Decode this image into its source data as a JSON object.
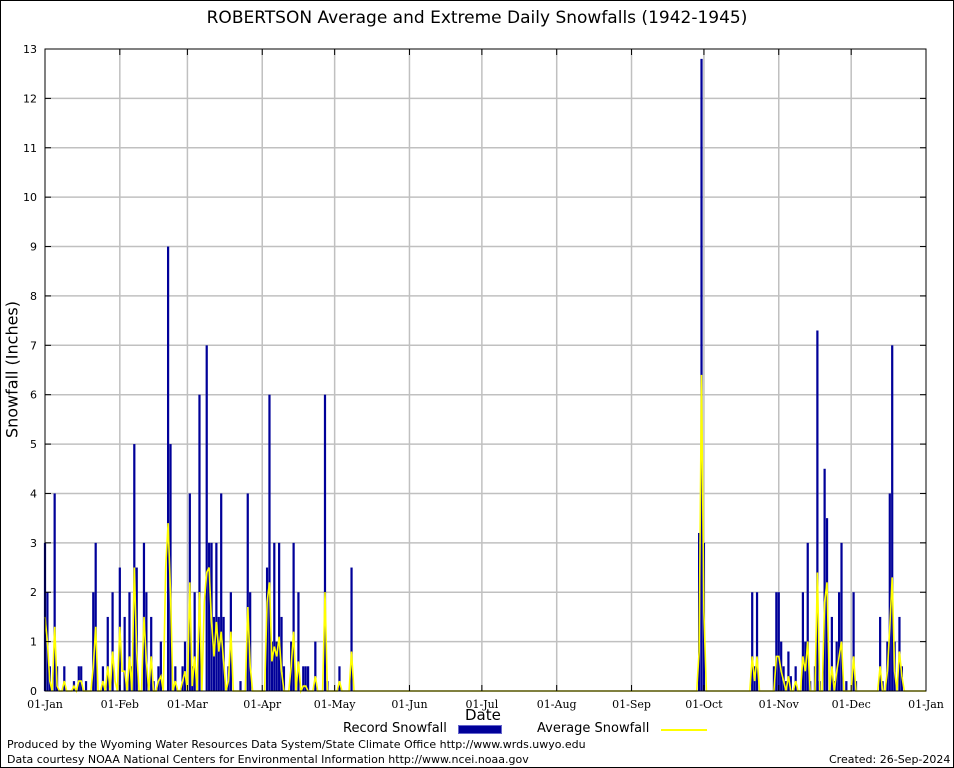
{
  "chart_data": {
    "type": "bar",
    "title": "ROBERTSON Average and Extreme Daily Snowfalls (1942-1945)",
    "xlabel": "Date",
    "ylabel": "Snowfall (Inches)",
    "ylim": [
      0,
      13
    ],
    "yticks": [
      0,
      1,
      2,
      3,
      4,
      5,
      6,
      7,
      8,
      9,
      10,
      11,
      12,
      13
    ],
    "xlim_days": [
      1,
      366
    ],
    "xticks": [
      {
        "label": "01-Jan",
        "day": 1
      },
      {
        "label": "01-Feb",
        "day": 32
      },
      {
        "label": "01-Mar",
        "day": 60
      },
      {
        "label": "01-Apr",
        "day": 91
      },
      {
        "label": "01-May",
        "day": 121
      },
      {
        "label": "01-Jun",
        "day": 152
      },
      {
        "label": "01-Jul",
        "day": 182
      },
      {
        "label": "01-Aug",
        "day": 213
      },
      {
        "label": "01-Sep",
        "day": 244
      },
      {
        "label": "01-Oct",
        "day": 274
      },
      {
        "label": "01-Nov",
        "day": 305
      },
      {
        "label": "01-Dec",
        "day": 335
      },
      {
        "label": "01-Jan",
        "day": 366
      }
    ],
    "grid": true,
    "legend_position": "bottom",
    "series": [
      {
        "name": "Record Snowfall",
        "color": "#000099",
        "points": [
          [
            1,
            3
          ],
          [
            2,
            2
          ],
          [
            3,
            0.5
          ],
          [
            5,
            4
          ],
          [
            6,
            0.5
          ],
          [
            9,
            0.5
          ],
          [
            13,
            0.2
          ],
          [
            15,
            0.5
          ],
          [
            16,
            0.5
          ],
          [
            18,
            0.2
          ],
          [
            21,
            2
          ],
          [
            22,
            3
          ],
          [
            25,
            0.5
          ],
          [
            27,
            1.5
          ],
          [
            29,
            2
          ],
          [
            32,
            2.5
          ],
          [
            34,
            1.5
          ],
          [
            36,
            2
          ],
          [
            37,
            0.5
          ],
          [
            38,
            5
          ],
          [
            39,
            2.5
          ],
          [
            42,
            3
          ],
          [
            43,
            2
          ],
          [
            45,
            1.5
          ],
          [
            46,
            0.2
          ],
          [
            48,
            0.5
          ],
          [
            49,
            1
          ],
          [
            52,
            9
          ],
          [
            53,
            5
          ],
          [
            55,
            0.5
          ],
          [
            58,
            0.5
          ],
          [
            59,
            1
          ],
          [
            61,
            4
          ],
          [
            62,
            0.5
          ],
          [
            63,
            2
          ],
          [
            65,
            6
          ],
          [
            68,
            7
          ],
          [
            69,
            3
          ],
          [
            70,
            3
          ],
          [
            71,
            1.5
          ],
          [
            72,
            3
          ],
          [
            73,
            1.5
          ],
          [
            74,
            4
          ],
          [
            75,
            1.5
          ],
          [
            77,
            0.5
          ],
          [
            78,
            2
          ],
          [
            82,
            0.2
          ],
          [
            85,
            4
          ],
          [
            86,
            2
          ],
          [
            93,
            2.5
          ],
          [
            94,
            6
          ],
          [
            95,
            1
          ],
          [
            96,
            3
          ],
          [
            97,
            1
          ],
          [
            98,
            3
          ],
          [
            99,
            1.5
          ],
          [
            100,
            0.5
          ],
          [
            103,
            1
          ],
          [
            104,
            3
          ],
          [
            106,
            2
          ],
          [
            108,
            0.5
          ],
          [
            109,
            0.5
          ],
          [
            110,
            0.5
          ],
          [
            113,
            1
          ],
          [
            117,
            6
          ],
          [
            118,
            0.2
          ],
          [
            123,
            0.5
          ],
          [
            128,
            2.5
          ],
          [
            272,
            3.2
          ],
          [
            273,
            12.8
          ],
          [
            274,
            3
          ],
          [
            294,
            2
          ],
          [
            295,
            0.5
          ],
          [
            296,
            2
          ],
          [
            303,
            0.5
          ],
          [
            304,
            2
          ],
          [
            305,
            2
          ],
          [
            306,
            1
          ],
          [
            307,
            0.5
          ],
          [
            308,
            0.2
          ],
          [
            309,
            0.8
          ],
          [
            310,
            0.3
          ],
          [
            312,
            0.5
          ],
          [
            315,
            2
          ],
          [
            316,
            1
          ],
          [
            317,
            3
          ],
          [
            318,
            0.2
          ],
          [
            320,
            0.5
          ],
          [
            321,
            7.3
          ],
          [
            322,
            0.2
          ],
          [
            324,
            4.5
          ],
          [
            325,
            3.5
          ],
          [
            327,
            1.5
          ],
          [
            328,
            0.2
          ],
          [
            329,
            1
          ],
          [
            330,
            2
          ],
          [
            331,
            3
          ],
          [
            333,
            0.2
          ],
          [
            336,
            2
          ],
          [
            337,
            0.2
          ],
          [
            347,
            1.5
          ],
          [
            348,
            0.2
          ],
          [
            350,
            1
          ],
          [
            351,
            4
          ],
          [
            352,
            7
          ],
          [
            353,
            1
          ],
          [
            355,
            1.5
          ],
          [
            356,
            0.5
          ]
        ]
      },
      {
        "name": "Average Snowfall",
        "color": "#ffff00",
        "points": [
          [
            1,
            1.5
          ],
          [
            2,
            1
          ],
          [
            3,
            0.2
          ],
          [
            5,
            1.3
          ],
          [
            6,
            0.1
          ],
          [
            9,
            0.2
          ],
          [
            13,
            0.1
          ],
          [
            15,
            0.2
          ],
          [
            16,
            0.2
          ],
          [
            21,
            0.5
          ],
          [
            22,
            1.3
          ],
          [
            25,
            0.2
          ],
          [
            27,
            0.5
          ],
          [
            29,
            0.8
          ],
          [
            30,
            0.2
          ],
          [
            32,
            1.3
          ],
          [
            33,
            0.4
          ],
          [
            34,
            0.4
          ],
          [
            36,
            0.7
          ],
          [
            38,
            2.5
          ],
          [
            39,
            0.8
          ],
          [
            42,
            1.5
          ],
          [
            43,
            0.6
          ],
          [
            45,
            0.7
          ],
          [
            48,
            0.2
          ],
          [
            49,
            0.3
          ],
          [
            51,
            2.5
          ],
          [
            52,
            3.4
          ],
          [
            53,
            2
          ],
          [
            55,
            0.2
          ],
          [
            58,
            0.2
          ],
          [
            59,
            0.4
          ],
          [
            61,
            2.2
          ],
          [
            62,
            0.1
          ],
          [
            63,
            0.7
          ],
          [
            65,
            2
          ],
          [
            67,
            1.8
          ],
          [
            68,
            2.4
          ],
          [
            69,
            2.5
          ],
          [
            70,
            1.4
          ],
          [
            71,
            0.7
          ],
          [
            72,
            1.4
          ],
          [
            73,
            0.8
          ],
          [
            74,
            1.2
          ],
          [
            75,
            0.6
          ],
          [
            77,
            0.2
          ],
          [
            78,
            1.2
          ],
          [
            85,
            1.7
          ],
          [
            86,
            0.5
          ],
          [
            93,
            1.8
          ],
          [
            94,
            2.2
          ],
          [
            95,
            0.6
          ],
          [
            96,
            0.9
          ],
          [
            97,
            0.7
          ],
          [
            98,
            1.1
          ],
          [
            99,
            0.4
          ],
          [
            103,
            0.5
          ],
          [
            104,
            1.2
          ],
          [
            106,
            0.6
          ],
          [
            108,
            0.1
          ],
          [
            109,
            0.1
          ],
          [
            113,
            0.3
          ],
          [
            117,
            2
          ],
          [
            123,
            0.2
          ],
          [
            128,
            0.8
          ],
          [
            272,
            0.8
          ],
          [
            273,
            6.4
          ],
          [
            274,
            1.6
          ],
          [
            294,
            0.7
          ],
          [
            295,
            0.2
          ],
          [
            296,
            0.7
          ],
          [
            304,
            0.7
          ],
          [
            305,
            0.7
          ],
          [
            306,
            0.4
          ],
          [
            307,
            0.2
          ],
          [
            309,
            0.3
          ],
          [
            312,
            0.2
          ],
          [
            315,
            0.7
          ],
          [
            316,
            0.4
          ],
          [
            317,
            1
          ],
          [
            321,
            2.4
          ],
          [
            324,
            1.8
          ],
          [
            325,
            2.2
          ],
          [
            327,
            0.5
          ],
          [
            329,
            0.4
          ],
          [
            330,
            0.7
          ],
          [
            331,
            1
          ],
          [
            336,
            0.7
          ],
          [
            347,
            0.5
          ],
          [
            350,
            0.4
          ],
          [
            351,
            1.3
          ],
          [
            352,
            2.3
          ],
          [
            353,
            0.4
          ],
          [
            355,
            0.8
          ],
          [
            356,
            0.3
          ]
        ]
      }
    ]
  },
  "footer": {
    "produced_by": "Produced by the Wyoming Water Resources Data System/State Climate Office http://www.wrds.uwyo.edu",
    "courtesy": "Data courtesy NOAA National Centers for Environmental Information http://www.ncei.noaa.gov",
    "created": "Created: 26-Sep-2024"
  }
}
